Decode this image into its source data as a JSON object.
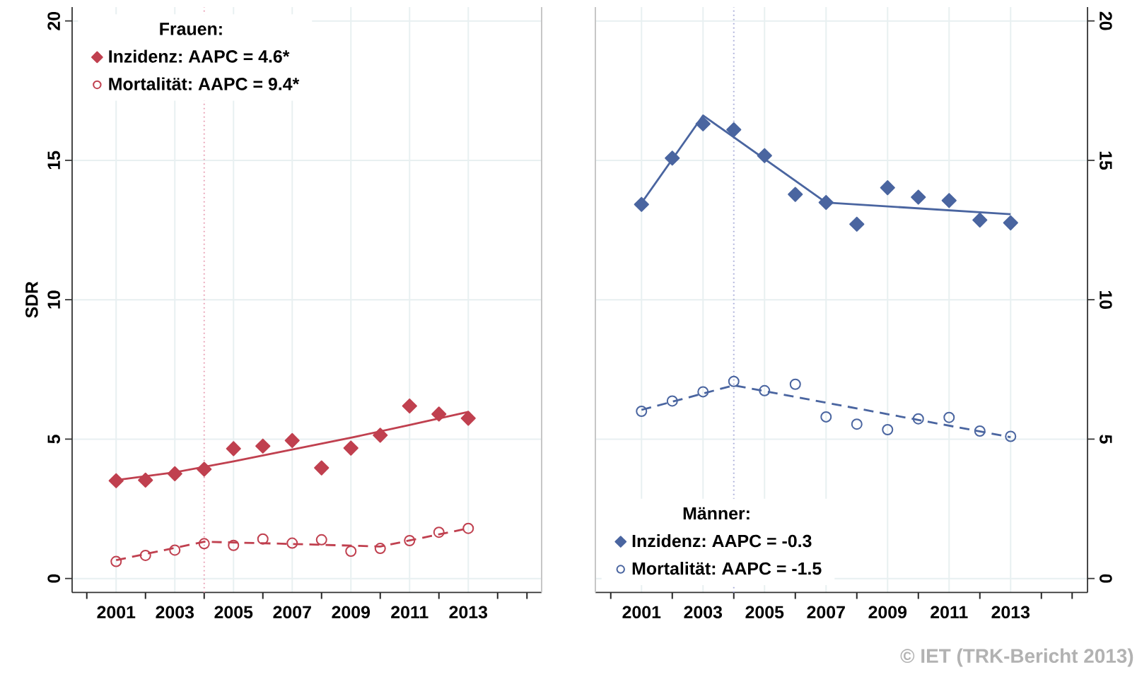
{
  "chart_data": [
    {
      "type": "scatter",
      "ylabel": "SDR",
      "legend_title": "Frauen:",
      "legend": "top left",
      "grid": true,
      "xlim": [
        1999.5,
        2015.5
      ],
      "xticks": [
        {
          "value": 2000,
          "label": null
        },
        2001,
        {
          "value": 2002,
          "label": null
        },
        2003,
        {
          "value": 2004,
          "label": null
        },
        2005,
        {
          "value": 2006,
          "label": null
        },
        2007,
        {
          "value": 2008,
          "label": null
        },
        2009,
        {
          "value": 2010,
          "label": null
        },
        2011,
        {
          "value": 2012,
          "label": null
        },
        2013,
        {
          "value": 2014,
          "label": null
        },
        {
          "value": 2015,
          "label": null
        }
      ],
      "ylim": [
        -0.5,
        20.5
      ],
      "yticks": [
        0,
        5,
        10,
        15,
        20
      ],
      "ref_lines": [
        {
          "axis": "x",
          "value": 2004,
          "color": "#e8a0b4",
          "line_style": "dotted"
        }
      ],
      "series": [
        {
          "name": "Inzidenz: AAPC = 4.6*",
          "marker": "diamond",
          "color": "#c0404f",
          "x": [
            2001,
            2002,
            2003,
            2004,
            2005,
            2006,
            2007,
            2008,
            2009,
            2010,
            2011,
            2012,
            2013
          ],
          "values": [
            3.51,
            3.53,
            3.76,
            3.92,
            4.66,
            4.75,
            4.95,
            3.97,
            4.68,
            5.14,
            6.19,
            5.9,
            5.75
          ]
        },
        {
          "name": "Mortalität: AAPC = 9.4*",
          "marker": "circle",
          "color": "#c0404f",
          "x": [
            2001,
            2002,
            2003,
            2004,
            2005,
            2006,
            2007,
            2008,
            2009,
            2010,
            2011,
            2012,
            2013
          ],
          "values": [
            0.61,
            0.83,
            1.02,
            1.25,
            1.19,
            1.42,
            1.27,
            1.39,
            0.98,
            1.08,
            1.36,
            1.66,
            1.8
          ]
        },
        {
          "type": "line",
          "marker": "none",
          "line_style": "solid",
          "color": "#c0404f",
          "x": [
            2001,
            2003,
            2005,
            2007,
            2009,
            2011,
            2013
          ],
          "values": [
            3.53,
            3.81,
            4.2,
            4.63,
            5.05,
            5.51,
            5.98
          ]
        },
        {
          "type": "line",
          "marker": "none",
          "line_style": "dashed",
          "color": "#c0404f",
          "x": [
            2001,
            2004,
            2007,
            2010,
            2013
          ],
          "values": [
            0.66,
            1.32,
            1.24,
            1.15,
            1.8
          ]
        }
      ]
    },
    {
      "type": "scatter",
      "legend_title": "Männer:",
      "legend": "bottom left",
      "grid": true,
      "xlim": [
        1999.5,
        2015.5
      ],
      "xticks": [
        {
          "value": 2000,
          "label": null
        },
        2001,
        {
          "value": 2002,
          "label": null
        },
        2003,
        {
          "value": 2004,
          "label": null
        },
        2005,
        {
          "value": 2006,
          "label": null
        },
        2007,
        {
          "value": 2008,
          "label": null
        },
        2009,
        {
          "value": 2010,
          "label": null
        },
        2011,
        {
          "value": 2012,
          "label": null
        },
        2013,
        {
          "value": 2014,
          "label": null
        },
        {
          "value": 2015,
          "label": null
        }
      ],
      "ylim": [
        -0.5,
        20.5
      ],
      "yticks": [
        0,
        5,
        10,
        15,
        20
      ],
      "ref_lines": [
        {
          "axis": "x",
          "value": 2004,
          "color": "#a8acd8",
          "line_style": "dotted"
        }
      ],
      "annotations": [
        "© IET (TRK-Bericht 2013)"
      ],
      "series": [
        {
          "name": "Inzidenz: AAPC = -0.3",
          "marker": "diamond",
          "color": "#4a65a0",
          "x": [
            2001,
            2002,
            2003,
            2004,
            2005,
            2006,
            2007,
            2008,
            2009,
            2010,
            2011,
            2012,
            2013
          ],
          "values": [
            13.42,
            15.08,
            16.31,
            16.1,
            15.17,
            13.78,
            13.49,
            12.71,
            14.02,
            13.68,
            13.56,
            12.86,
            12.76
          ]
        },
        {
          "name": "Mortalität: AAPC = -1.5",
          "marker": "circle",
          "color": "#4a65a0",
          "x": [
            2001,
            2002,
            2003,
            2004,
            2005,
            2006,
            2007,
            2008,
            2009,
            2010,
            2011,
            2012,
            2013
          ],
          "values": [
            6.0,
            6.37,
            6.7,
            7.07,
            6.74,
            6.97,
            5.8,
            5.54,
            5.34,
            5.73,
            5.78,
            5.29,
            5.1
          ]
        },
        {
          "type": "line",
          "marker": "none",
          "line_style": "solid",
          "color": "#4a65a0",
          "x": [
            2001,
            2003,
            2007,
            2013
          ],
          "values": [
            13.47,
            16.61,
            13.49,
            13.07
          ]
        },
        {
          "type": "line",
          "marker": "none",
          "line_style": "dashed",
          "color": "#4a65a0",
          "x": [
            2001,
            2004,
            2013
          ],
          "values": [
            6.05,
            6.93,
            5.07
          ]
        }
      ]
    }
  ]
}
